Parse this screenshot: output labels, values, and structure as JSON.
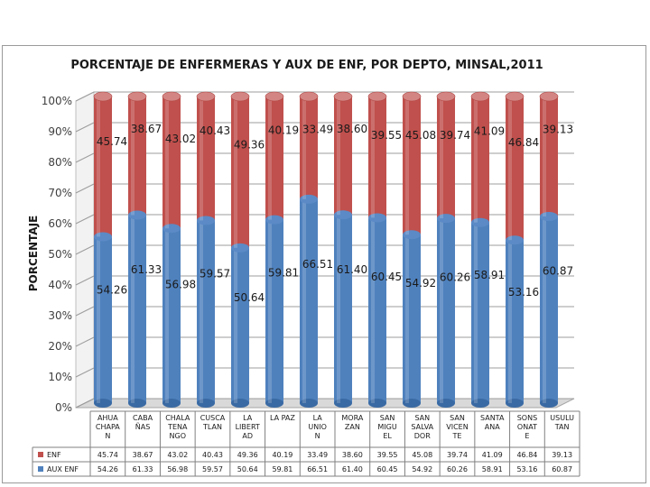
{
  "chart_data": {
    "type": "bar",
    "stacked": true,
    "percent_stacked": true,
    "title": "PORCENTAJE DE ENFERMERAS Y AUX DE ENF, POR DEPTO, MINSAL,2011",
    "ylabel": "PORCENTAJE",
    "ylim": [
      0,
      100
    ],
    "yticks": [
      "0%",
      "10%",
      "20%",
      "30%",
      "40%",
      "50%",
      "60%",
      "70%",
      "80%",
      "90%",
      "100%"
    ],
    "categories": [
      [
        "AHUA",
        "CHAPA",
        "N"
      ],
      [
        "CABA",
        "ÑAS"
      ],
      [
        "CHALA",
        "TENA",
        "NGO"
      ],
      [
        "CUSCA",
        "TLAN"
      ],
      [
        "LA",
        "LIBERT",
        "AD"
      ],
      [
        "LA PAZ"
      ],
      [
        "LA",
        "UNIO",
        "N"
      ],
      [
        "MORA",
        "ZAN"
      ],
      [
        "SAN",
        "MIGU",
        "EL"
      ],
      [
        "SAN",
        "SALVA",
        "DOR"
      ],
      [
        "SAN",
        "VICEN",
        "TE"
      ],
      [
        "SANTA",
        "ANA"
      ],
      [
        "SONS",
        "ONAT",
        "E"
      ],
      [
        "USULU",
        "TAN"
      ]
    ],
    "series": [
      {
        "name": "ENF",
        "color": "#c0504d",
        "values": [
          45.74,
          38.67,
          43.02,
          40.43,
          49.36,
          40.19,
          33.49,
          38.6,
          39.55,
          45.08,
          39.74,
          41.09,
          46.84,
          39.13
        ],
        "labels": [
          "45.74",
          "38.67",
          "43.02",
          "40.43",
          "49.36",
          "40.19",
          "33.49",
          "38.60",
          "39.55",
          "45.08",
          "39.74",
          "41.09",
          "46.84",
          "39.13"
        ],
        "table_values": [
          "45.74",
          "38.67",
          "43.02",
          "40.43",
          "49.36",
          "40.19",
          "33.49",
          "38.60",
          "39.55",
          "45.08",
          "39.74",
          "41.09",
          "46.84",
          "39.13"
        ]
      },
      {
        "name": "AUX ENF",
        "color": "#4f81bd",
        "values": [
          54.26,
          61.33,
          56.98,
          59.57,
          50.64,
          59.81,
          66.51,
          61.4,
          60.45,
          54.92,
          60.26,
          58.91,
          53.16,
          60.87
        ],
        "labels": [
          "54.26",
          "61.33",
          "56.98",
          "59.57",
          "50.64",
          "59.81",
          "66.51",
          "61.40",
          "60.45",
          "54.92",
          "60.26",
          "58.91",
          "53.16",
          "60.87"
        ],
        "table_values": [
          "54.26",
          "61.33",
          "56.98",
          "59.57",
          "50.64",
          "59.81",
          "66.51",
          "61.40",
          "60.45",
          "54.92",
          "60.26",
          "58.91",
          "53.16",
          "60.87"
        ]
      }
    ],
    "legend": "data-table-rows",
    "grid": true
  }
}
